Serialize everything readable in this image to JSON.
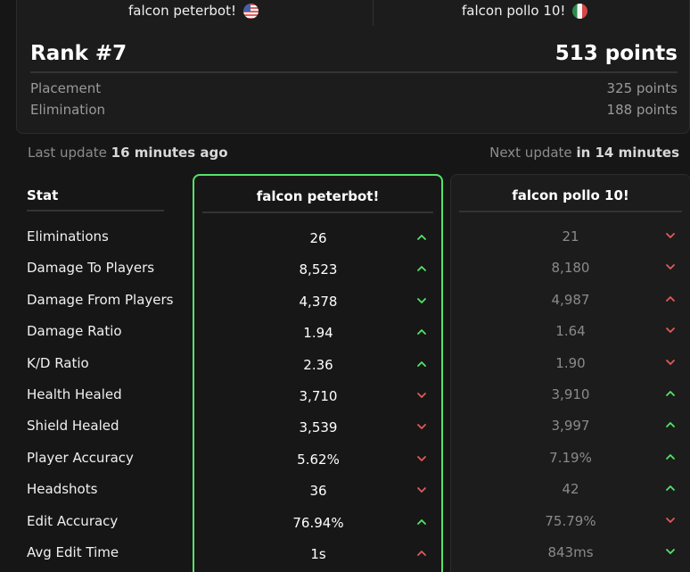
{
  "header": {
    "player1": {
      "name": "falcon peterbot!",
      "flag_icon": "us-flag-icon"
    },
    "player2": {
      "name": "falcon pollo 10!",
      "flag_icon": "mexico-flag-icon"
    },
    "rank": "Rank #7",
    "points": "513 points",
    "breakdown": [
      {
        "label": "Placement",
        "value": "325 points"
      },
      {
        "label": "Elimination",
        "value": "188 points"
      }
    ]
  },
  "updates": {
    "last_prefix": "Last update",
    "last_value": "16 minutes ago",
    "next_prefix": "Next update",
    "next_value": "in 14 minutes"
  },
  "table": {
    "stat_header": "Stat",
    "col1_header": "falcon peterbot!",
    "col2_header": "falcon pollo 10!",
    "rows": [
      {
        "label": "Eliminations",
        "p1": "26",
        "p1_trend": "up",
        "p2": "21",
        "p2_trend": "down"
      },
      {
        "label": "Damage To Players",
        "p1": "8,523",
        "p1_trend": "up",
        "p2": "8,180",
        "p2_trend": "down"
      },
      {
        "label": "Damage From Players",
        "p1": "4,378",
        "p1_trend": "down-good",
        "p2": "4,987",
        "p2_trend": "up-bad"
      },
      {
        "label": "Damage Ratio",
        "p1": "1.94",
        "p1_trend": "up",
        "p2": "1.64",
        "p2_trend": "down"
      },
      {
        "label": "K/D Ratio",
        "p1": "2.36",
        "p1_trend": "up",
        "p2": "1.90",
        "p2_trend": "down"
      },
      {
        "label": "Health Healed",
        "p1": "3,710",
        "p1_trend": "down",
        "p2": "3,910",
        "p2_trend": "up"
      },
      {
        "label": "Shield Healed",
        "p1": "3,539",
        "p1_trend": "down",
        "p2": "3,997",
        "p2_trend": "up"
      },
      {
        "label": "Player Accuracy",
        "p1": "5.62%",
        "p1_trend": "down",
        "p2": "7.19%",
        "p2_trend": "up"
      },
      {
        "label": "Headshots",
        "p1": "36",
        "p1_trend": "down",
        "p2": "42",
        "p2_trend": "up"
      },
      {
        "label": "Edit Accuracy",
        "p1": "76.94%",
        "p1_trend": "up",
        "p2": "75.79%",
        "p2_trend": "down"
      },
      {
        "label": "Avg Edit Time",
        "p1": "1s",
        "p1_trend": "up-bad",
        "p2": "843ms",
        "p2_trend": "down-good"
      }
    ]
  },
  "colors": {
    "good": "#55e26a",
    "bad": "#e05a5a",
    "highlight_border": "#55e26a"
  }
}
